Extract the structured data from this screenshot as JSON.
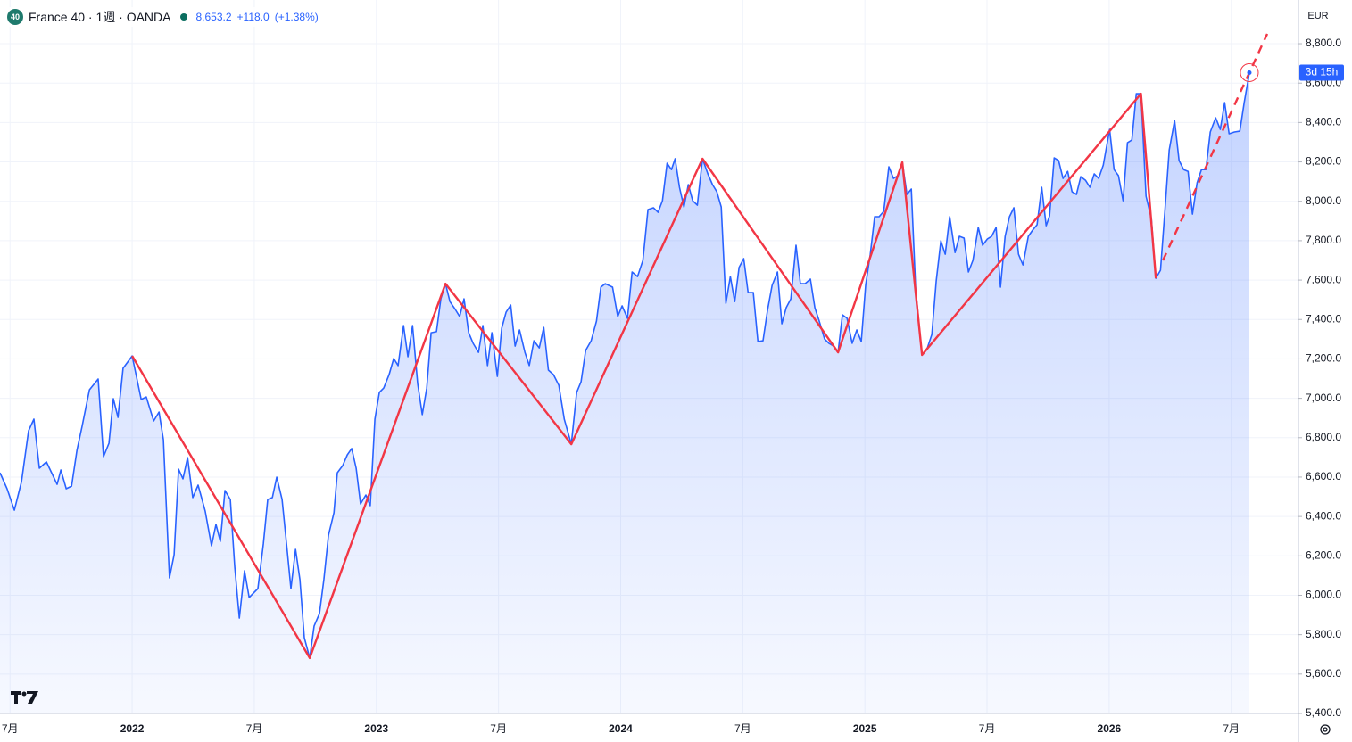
{
  "chart_data": {
    "type": "line",
    "badge": "40",
    "title": "France 40 · 1週 · OANDA",
    "price": "8,653.2",
    "change": "+118.0",
    "change_pct": "(+1.38%)",
    "currency": "EUR",
    "countdown": "3d 15h",
    "xlim": [
      2021.459,
      2026.775
    ],
    "ylim": [
      5400,
      9022
    ],
    "grid": true,
    "xticks": [
      {
        "value": 2021.5,
        "label": "7月"
      },
      2022,
      {
        "value": 2022.5,
        "label": "7月"
      },
      2023,
      {
        "value": 2023.5,
        "label": "7月"
      },
      2024,
      {
        "value": 2024.5,
        "label": "7月"
      },
      2025,
      {
        "value": 2025.5,
        "label": "7月"
      },
      2026,
      {
        "value": 2026.5,
        "label": "7月"
      }
    ],
    "yticks": [
      {
        "value": 5400,
        "label": "5,400.0"
      },
      {
        "value": 5600,
        "label": "5,600.0"
      },
      {
        "value": 5800,
        "label": "5,800.0"
      },
      {
        "value": 6000,
        "label": "6,000.0"
      },
      {
        "value": 6200,
        "label": "6,200.0"
      },
      {
        "value": 6400,
        "label": "6,400.0"
      },
      {
        "value": 6600,
        "label": "6,600.0"
      },
      {
        "value": 6800,
        "label": "6,800.0"
      },
      {
        "value": 7000,
        "label": "7,000.0"
      },
      {
        "value": 7200,
        "label": "7,200.0"
      },
      {
        "value": 7400,
        "label": "7,400.0"
      },
      {
        "value": 7600,
        "label": "7,600.0"
      },
      {
        "value": 7800,
        "label": "7,800.0"
      },
      {
        "value": 8000,
        "label": "8,000.0"
      },
      {
        "value": 8200,
        "label": "8,200.0"
      },
      {
        "value": 8400,
        "label": "8,400.0"
      },
      {
        "value": 8600,
        "label": "8,600.0"
      },
      {
        "value": 8800,
        "label": "8,800.0"
      }
    ],
    "series": [
      {
        "color": "#2962ff",
        "area": true,
        "x": [
          2021.459,
          2021.488,
          2021.518,
          2021.547,
          2021.576,
          2021.598,
          2021.62,
          2021.649,
          2021.693,
          2021.708,
          2021.73,
          2021.752,
          2021.774,
          2021.795,
          2021.825,
          2021.861,
          2021.883,
          2021.905,
          2021.923,
          2021.942,
          2021.963,
          2022,
          2022.037,
          2022.058,
          2022.088,
          2022.11,
          2022.128,
          2022.153,
          2022.172,
          2022.19,
          2022.208,
          2022.227,
          2022.248,
          2022.27,
          2022.299,
          2022.325,
          2022.343,
          2022.361,
          2022.38,
          2022.402,
          2022.42,
          2022.439,
          2022.46,
          2022.479,
          2022.515,
          2022.537,
          2022.555,
          2022.574,
          2022.592,
          2022.614,
          2022.636,
          2022.65,
          2022.669,
          2022.687,
          2022.705,
          2022.727,
          2022.745,
          2022.767,
          2022.785,
          2022.804,
          2022.826,
          2022.84,
          2022.862,
          2022.881,
          2022.899,
          2022.917,
          2022.935,
          2022.957,
          2022.975,
          2022.994,
          2023.012,
          2023.03,
          2023.052,
          2023.071,
          2023.089,
          2023.111,
          2023.129,
          2023.148,
          2023.169,
          2023.188,
          2023.206,
          2023.224,
          2023.246,
          2023.264,
          2023.283,
          2023.301,
          2023.323,
          2023.341,
          2023.359,
          2023.378,
          2023.396,
          2023.418,
          2023.436,
          2023.455,
          2023.473,
          2023.495,
          2023.513,
          2023.531,
          2023.55,
          2023.568,
          2023.586,
          2023.608,
          2023.626,
          2023.645,
          2023.667,
          2023.685,
          2023.704,
          2023.725,
          2023.747,
          2023.769,
          2023.798,
          2023.82,
          2023.838,
          2023.857,
          2023.879,
          2023.901,
          2023.919,
          2023.937,
          2023.967,
          2023.988,
          2024.006,
          2024.028,
          2024.047,
          2024.069,
          2024.091,
          2024.112,
          2024.134,
          2024.153,
          2024.171,
          2024.19,
          2024.208,
          2024.223,
          2024.241,
          2024.259,
          2024.277,
          2024.295,
          2024.314,
          2024.335,
          2024.357,
          2024.376,
          2024.394,
          2024.412,
          2024.431,
          2024.449,
          2024.467,
          2024.485,
          2024.504,
          2024.522,
          2024.543,
          2024.562,
          2024.583,
          2024.602,
          2024.62,
          2024.642,
          2024.66,
          2024.678,
          2024.697,
          2024.718,
          2024.736,
          2024.755,
          2024.777,
          2024.795,
          2024.813,
          2024.835,
          2024.853,
          2024.872,
          2024.89,
          2024.908,
          2024.927,
          2024.948,
          2024.967,
          2024.985,
          2025.003,
          2025.022,
          2025.04,
          2025.058,
          2025.077,
          2025.098,
          2025.117,
          2025.135,
          2025.153,
          2025.172,
          2025.19,
          2025.208,
          2025.234,
          2025.256,
          2025.274,
          2025.292,
          2025.311,
          2025.329,
          2025.347,
          2025.369,
          2025.387,
          2025.406,
          2025.424,
          2025.442,
          2025.464,
          2025.482,
          2025.501,
          2025.519,
          2025.537,
          2025.555,
          2025.574,
          2025.592,
          2025.61,
          2025.629,
          2025.647,
          2025.669,
          2025.687,
          2025.705,
          2025.724,
          2025.742,
          2025.756,
          2025.775,
          2025.793,
          2025.811,
          2025.83,
          2025.848,
          2025.866,
          2025.884,
          2025.903,
          2025.921,
          2025.939,
          2025.957,
          2025.976,
          2026.002,
          2026.02,
          2026.038,
          2026.057,
          2026.075,
          2026.093,
          2026.111,
          2026.13,
          2026.151,
          2026.173,
          2026.191,
          2026.21,
          2026.228,
          2026.246,
          2026.268,
          2026.286,
          2026.305,
          2026.323,
          2026.341,
          2026.36,
          2026.378,
          2026.396,
          2026.414,
          2026.436,
          2026.455,
          2026.473,
          2026.491,
          2026.513,
          2026.535,
          2026.553,
          2026.574
        ],
        "values": [
          6622,
          6541,
          6432,
          6577,
          6835,
          6894,
          6645,
          6677,
          6563,
          6636,
          6541,
          6554,
          6735,
          6858,
          7043,
          7098,
          6704,
          6772,
          6998,
          6903,
          7152,
          7215,
          6994,
          7007,
          6885,
          6930,
          6790,
          6088,
          6206,
          6640,
          6591,
          6699,
          6496,
          6559,
          6428,
          6251,
          6360,
          6274,
          6532,
          6486,
          6147,
          5884,
          6124,
          5989,
          6034,
          6260,
          6486,
          6496,
          6600,
          6486,
          6215,
          6034,
          6233,
          6079,
          5785,
          5681,
          5844,
          5907,
          6079,
          6305,
          6419,
          6622,
          6658,
          6713,
          6745,
          6645,
          6464,
          6509,
          6455,
          6894,
          7030,
          7052,
          7120,
          7202,
          7166,
          7369,
          7211,
          7369,
          7075,
          6917,
          7052,
          7333,
          7338,
          7505,
          7582,
          7491,
          7451,
          7415,
          7505,
          7333,
          7279,
          7233,
          7369,
          7166,
          7333,
          7111,
          7356,
          7437,
          7473,
          7265,
          7347,
          7233,
          7166,
          7292,
          7256,
          7360,
          7143,
          7120,
          7066,
          6894,
          6767,
          7030,
          7084,
          7243,
          7292,
          7392,
          7564,
          7582,
          7564,
          7415,
          7469,
          7406,
          7641,
          7618,
          7700,
          7958,
          7967,
          7944,
          8003,
          8193,
          8161,
          8216,
          8071,
          7971,
          8085,
          8003,
          7980,
          8216,
          8139,
          8085,
          8048,
          7971,
          7482,
          7618,
          7491,
          7664,
          7709,
          7537,
          7537,
          7288,
          7292,
          7451,
          7573,
          7641,
          7378,
          7460,
          7505,
          7777,
          7582,
          7582,
          7605,
          7460,
          7392,
          7301,
          7279,
          7265,
          7233,
          7424,
          7406,
          7279,
          7347,
          7288,
          7573,
          7731,
          7922,
          7922,
          7949,
          8175,
          8116,
          8130,
          8198,
          8035,
          8062,
          7550,
          7220,
          7256,
          7324,
          7596,
          7799,
          7731,
          7922,
          7740,
          7822,
          7813,
          7641,
          7700,
          7867,
          7777,
          7808,
          7822,
          7867,
          7564,
          7822,
          7922,
          7967,
          7731,
          7677,
          7822,
          7854,
          7881,
          8071,
          7876,
          7926,
          8220,
          8207,
          8116,
          8152,
          8048,
          8035,
          8125,
          8107,
          8071,
          8139,
          8116,
          8184,
          8365,
          8161,
          8130,
          8003,
          8297,
          8311,
          8546,
          8546,
          8026,
          7912,
          7609,
          7650,
          7949,
          8261,
          8410,
          8207,
          8161,
          8152,
          7935,
          8094,
          8161,
          8161,
          8352,
          8424,
          8365,
          8501,
          8343,
          8352,
          8356,
          8501,
          8653.2
        ]
      },
      {
        "color": "#f23645",
        "x": [
          2022,
          2022.727,
          2023.283,
          2023.798,
          2024.335,
          2024.89,
          2025.153,
          2025.234,
          2026.13,
          2026.191
        ],
        "values": [
          7215,
          5681,
          7582,
          6767,
          8216,
          7233,
          8198,
          7220,
          8546,
          7609
        ]
      },
      {
        "color": "#f23645",
        "dash": true,
        "x": [
          2026.22,
          2026.647
        ],
        "values": [
          7700,
          8850
        ]
      }
    ]
  }
}
